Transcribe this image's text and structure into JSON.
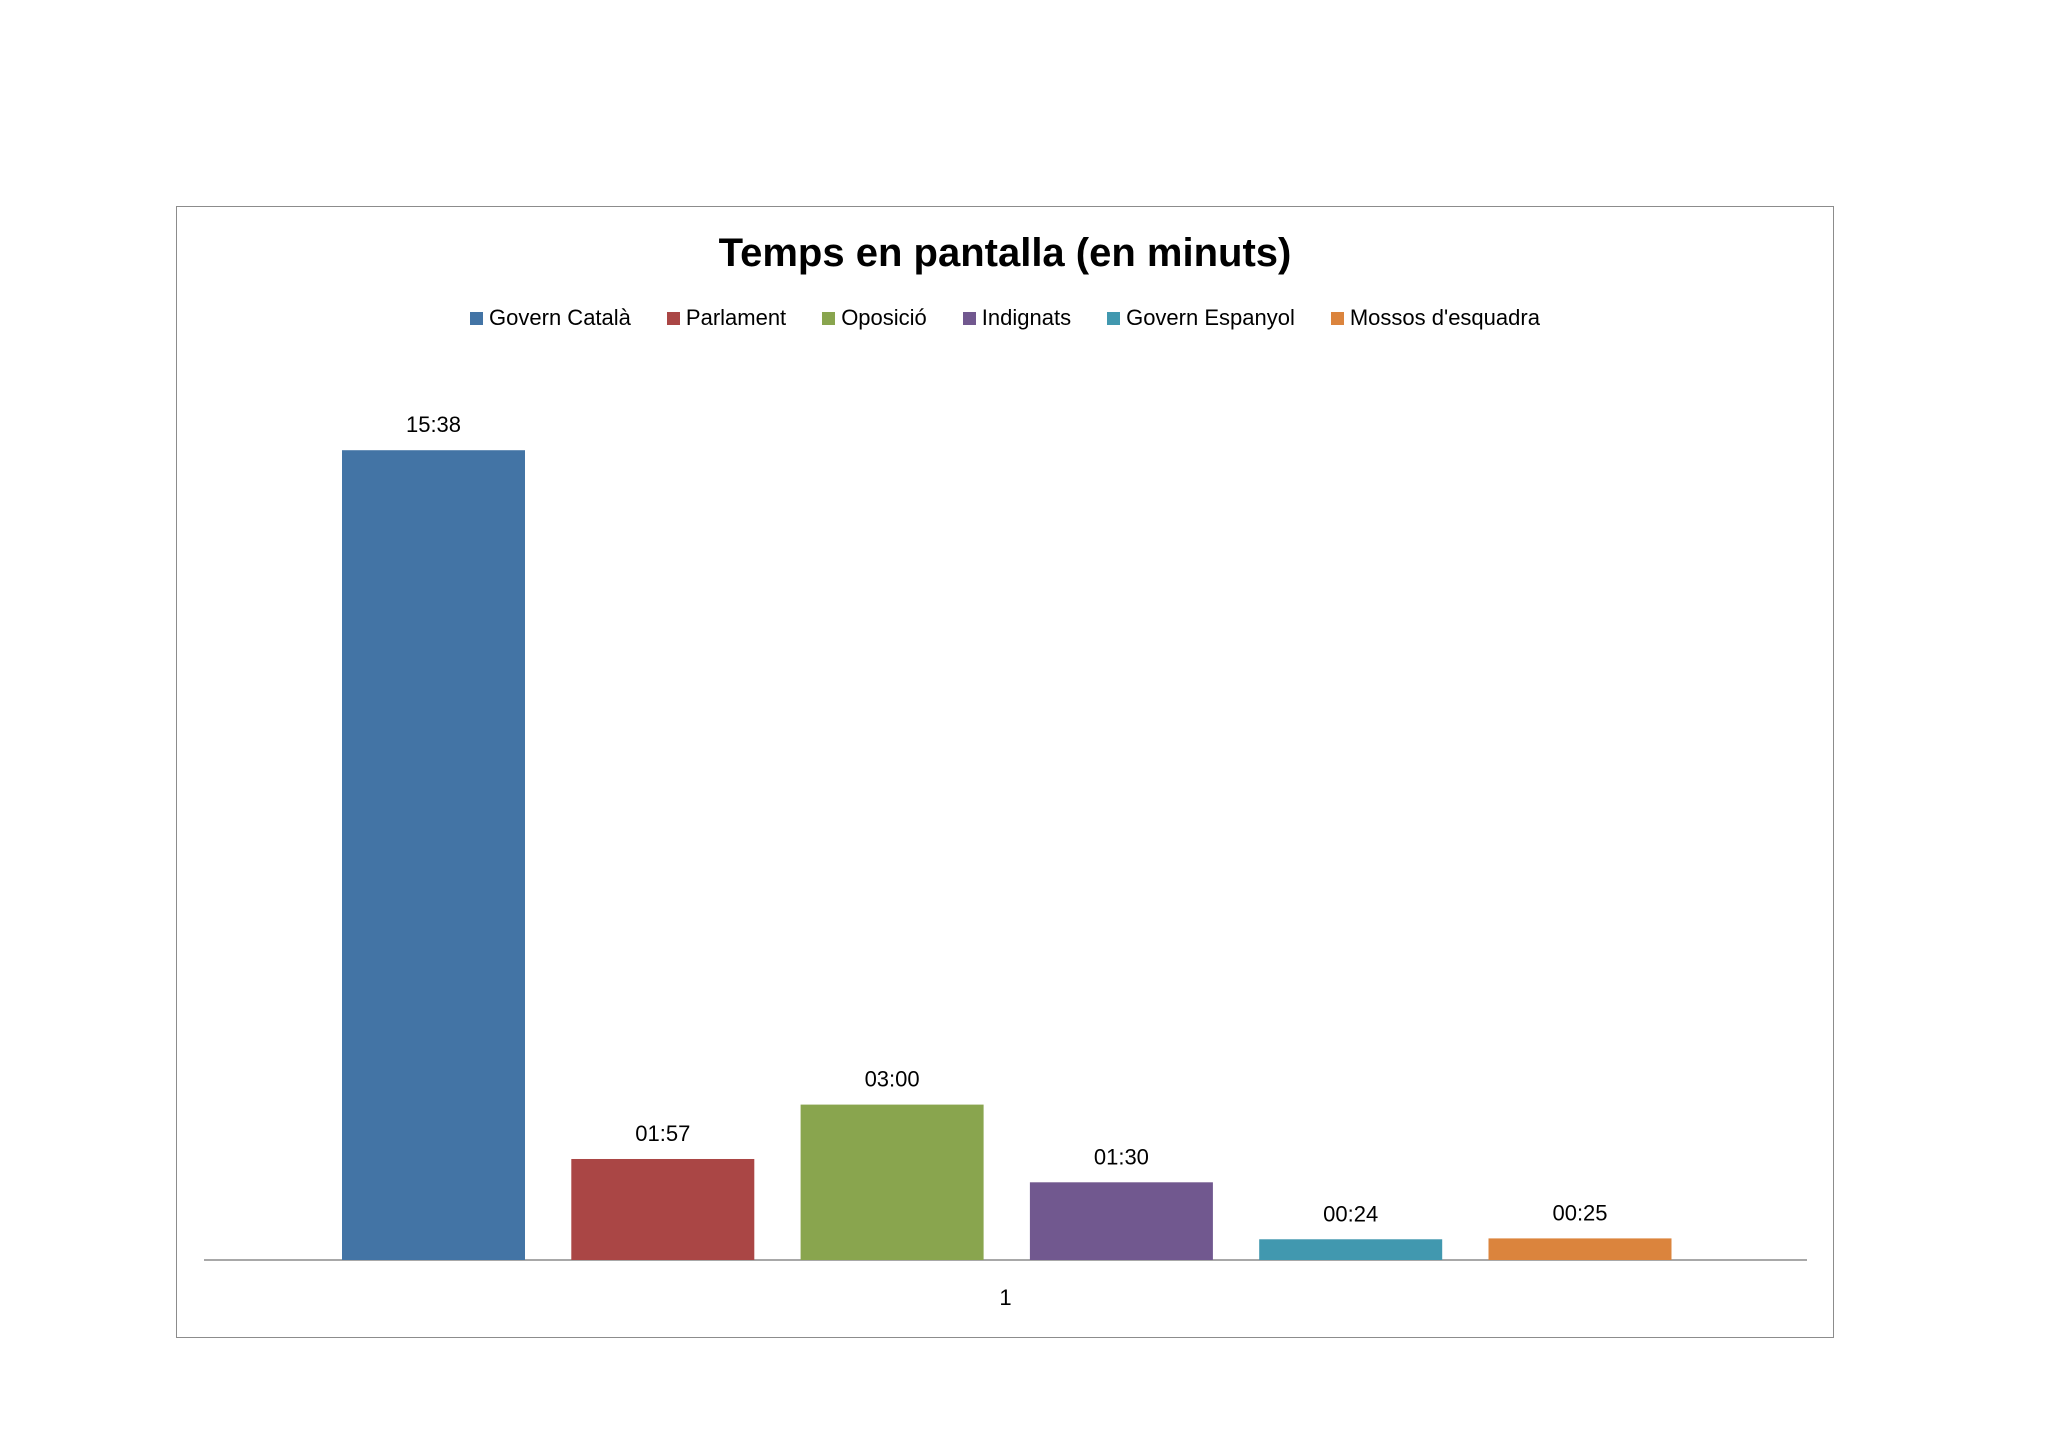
{
  "chart_data": {
    "type": "bar",
    "title": "Temps en pantalla (en minuts)",
    "xlabel": "",
    "ylabel": "",
    "categories": [
      "1"
    ],
    "ylim": [
      0,
      17
    ],
    "grid": false,
    "legend_position": "top",
    "series": [
      {
        "name": "Govern Català",
        "value": 15.633,
        "label": "15:38",
        "color": "#4374A5"
      },
      {
        "name": "Parlament",
        "value": 1.95,
        "label": "01:57",
        "color": "#AA4645"
      },
      {
        "name": "Oposició",
        "value": 3.0,
        "label": "03:00",
        "color": "#89A54E"
      },
      {
        "name": "Indignats",
        "value": 1.5,
        "label": "01:30",
        "color": "#71588F"
      },
      {
        "name": "Govern Espanyol",
        "value": 0.4,
        "label": "00:24",
        "color": "#4198AF"
      },
      {
        "name": "Mossos d'esquadra",
        "value": 0.417,
        "label": "00:25",
        "color": "#DB843D"
      }
    ]
  }
}
